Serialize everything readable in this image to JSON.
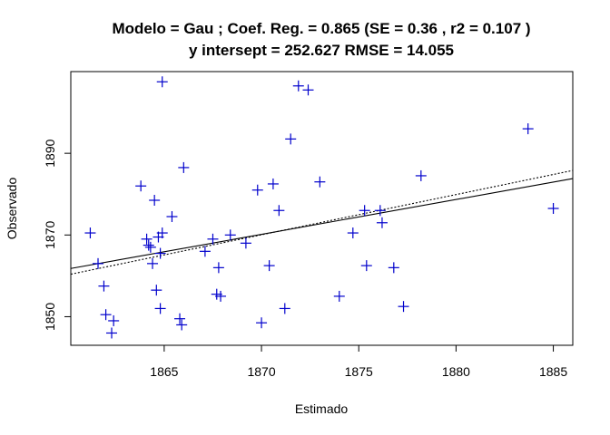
{
  "chart_data": {
    "type": "scatter",
    "title_line1": "Modelo =  Gau ; Coef. Reg. =  0.865  (SE =  0.36 , r2 =  0.107 )",
    "title_line2": "y intersept =  252.627 RMSE =  14.055",
    "xlabel": "Estimado",
    "ylabel": "Observado",
    "xlim": [
      1860.2,
      1886.0
    ],
    "ylim": [
      1843.0,
      1910.0
    ],
    "xticks": [
      1865,
      1870,
      1875,
      1880,
      1885
    ],
    "yticks": [
      1850,
      1870,
      1890
    ],
    "point_color": "#0000cc",
    "points": [
      [
        1861.2,
        1870.5
      ],
      [
        1861.6,
        1863.0
      ],
      [
        1861.9,
        1857.5
      ],
      [
        1862.0,
        1850.5
      ],
      [
        1862.3,
        1846.0
      ],
      [
        1862.4,
        1849.0
      ],
      [
        1863.8,
        1882.0
      ],
      [
        1864.1,
        1869.0
      ],
      [
        1864.2,
        1867.5
      ],
      [
        1864.3,
        1867.0
      ],
      [
        1864.4,
        1863.0
      ],
      [
        1864.5,
        1878.5
      ],
      [
        1864.6,
        1856.5
      ],
      [
        1864.7,
        1869.5
      ],
      [
        1864.8,
        1865.5
      ],
      [
        1864.8,
        1852.0
      ],
      [
        1864.9,
        1907.5
      ],
      [
        1864.9,
        1870.5
      ],
      [
        1865.4,
        1874.5
      ],
      [
        1865.8,
        1849.5
      ],
      [
        1865.9,
        1848.0
      ],
      [
        1866.0,
        1886.5
      ],
      [
        1867.1,
        1866.0
      ],
      [
        1867.5,
        1869.0
      ],
      [
        1867.7,
        1855.5
      ],
      [
        1867.8,
        1862.0
      ],
      [
        1867.9,
        1855.0
      ],
      [
        1868.4,
        1870.0
      ],
      [
        1869.2,
        1868.0
      ],
      [
        1869.8,
        1881.0
      ],
      [
        1870.0,
        1848.5
      ],
      [
        1870.4,
        1862.5
      ],
      [
        1870.6,
        1882.5
      ],
      [
        1870.9,
        1876.0
      ],
      [
        1871.2,
        1852.0
      ],
      [
        1871.5,
        1893.5
      ],
      [
        1871.9,
        1906.5
      ],
      [
        1872.4,
        1905.5
      ],
      [
        1873.0,
        1883.0
      ],
      [
        1874.0,
        1855.0
      ],
      [
        1874.7,
        1870.5
      ],
      [
        1875.3,
        1876.0
      ],
      [
        1875.4,
        1862.5
      ],
      [
        1876.1,
        1876.0
      ],
      [
        1876.2,
        1873.0
      ],
      [
        1876.8,
        1862.0
      ],
      [
        1877.3,
        1852.5
      ],
      [
        1878.2,
        1884.5
      ],
      [
        1883.7,
        1896.0
      ],
      [
        1885.0,
        1876.5
      ]
    ],
    "lines": [
      {
        "style": "solid",
        "x": [
          1860.2,
          1886.0
        ],
        "y": [
          1861.8,
          1883.8
        ]
      },
      {
        "style": "dotted",
        "x": [
          1860.2,
          1886.0
        ],
        "y": [
          1860.4,
          1885.8
        ]
      }
    ]
  }
}
